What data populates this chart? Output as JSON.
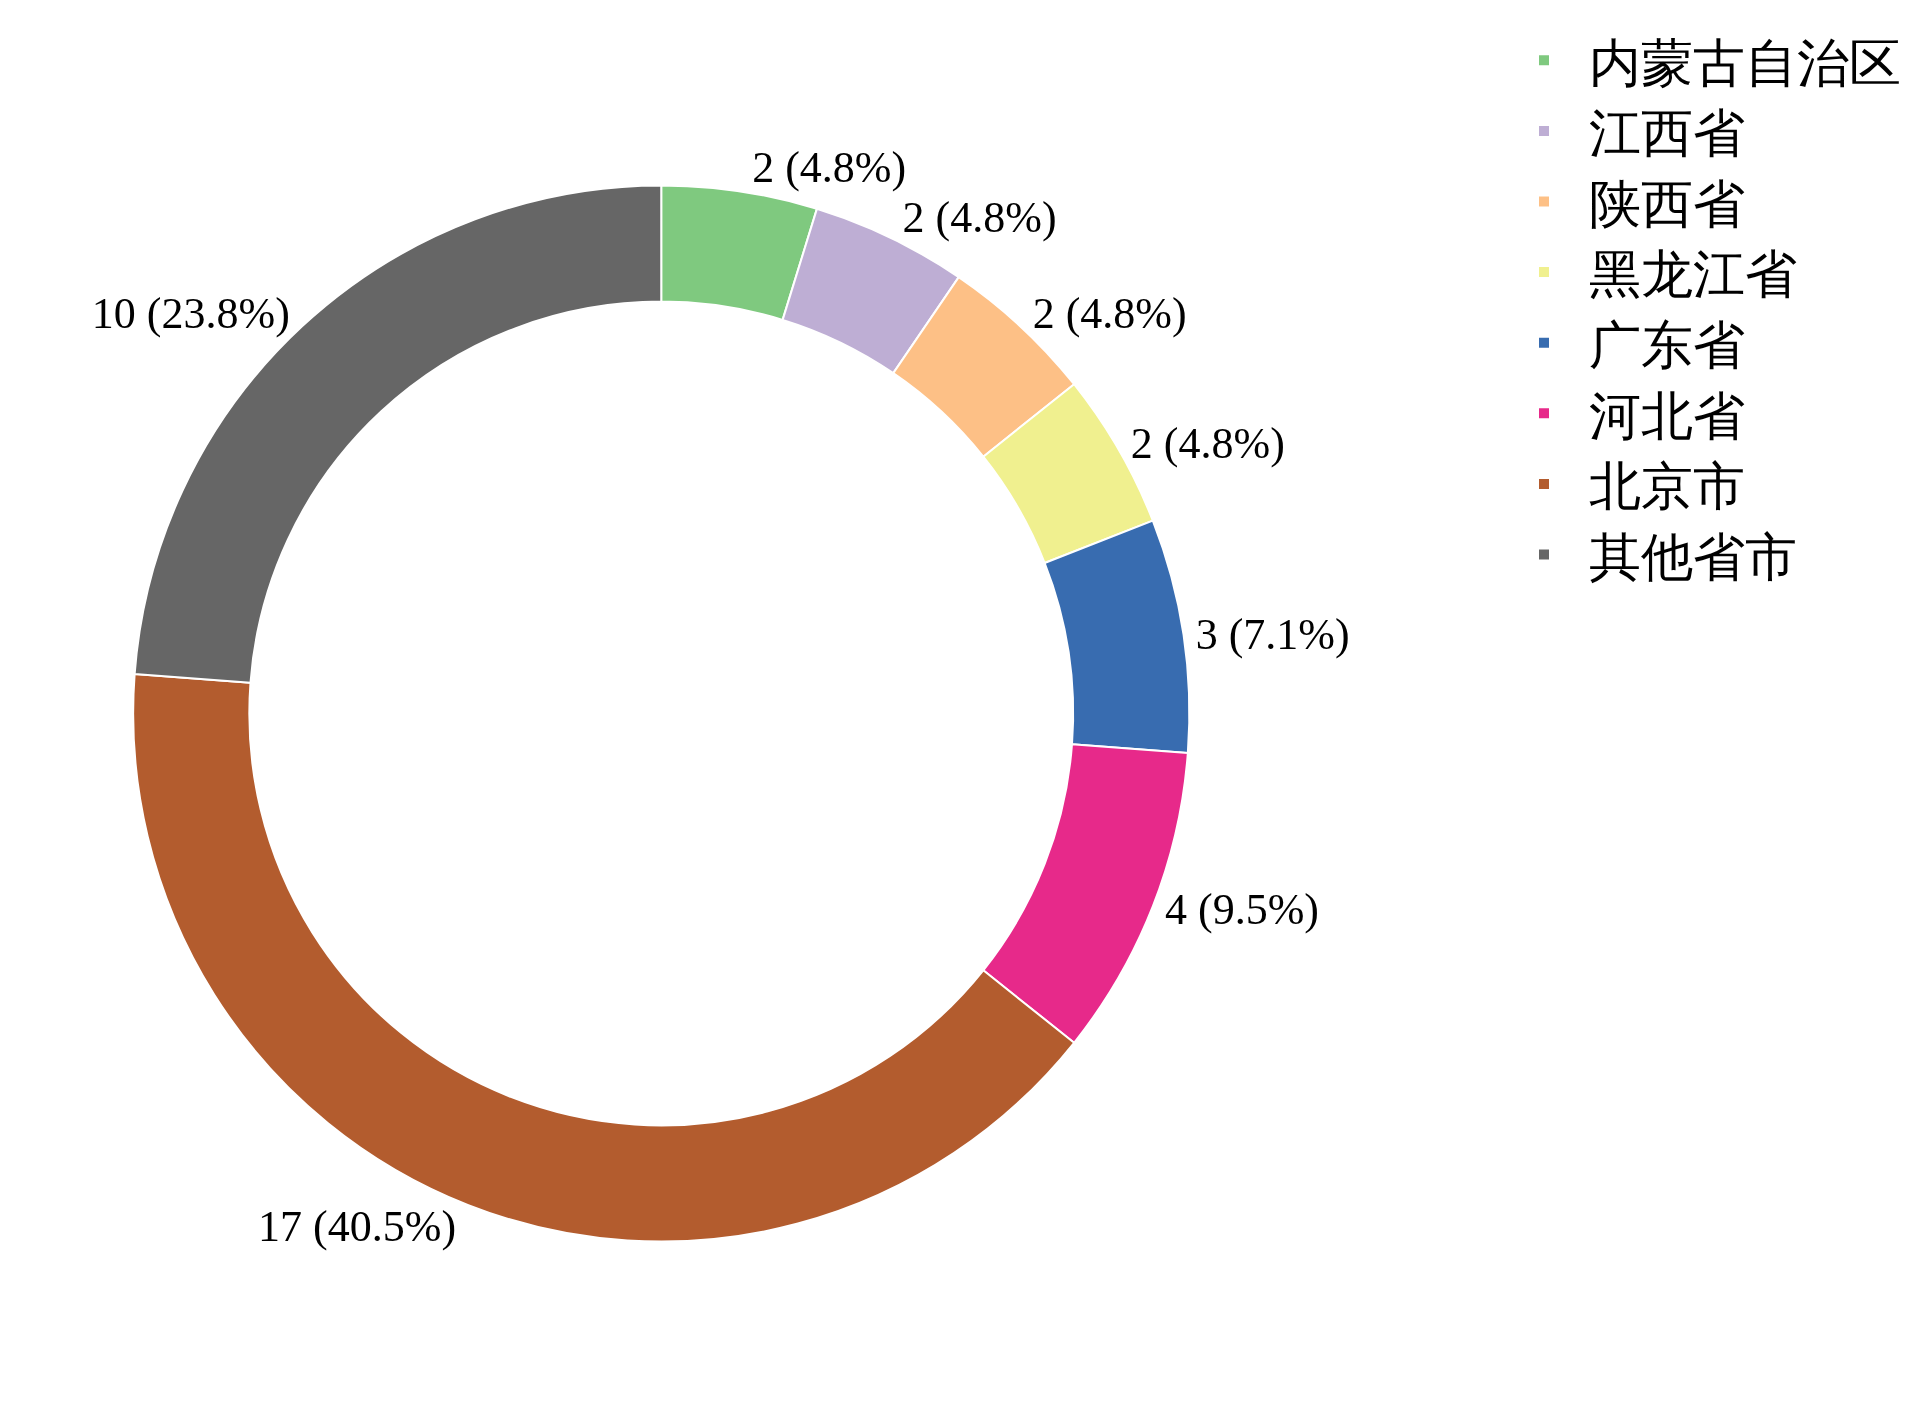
{
  "chart_data": {
    "type": "donut",
    "categories": [
      "内蒙古自治区",
      "江西省",
      "陕西省",
      "黑龙江省",
      "广东省",
      "河北省",
      "北京市",
      "其他省市"
    ],
    "values": [
      2,
      2,
      2,
      2,
      3,
      4,
      17,
      10
    ],
    "colors": [
      "#7fc97f",
      "#beaed4",
      "#fdc086",
      "#f0f08f",
      "#386cb0",
      "#e7298a",
      "#b35c2e",
      "#666666"
    ],
    "value_labels": [
      "2 (4.8%)",
      "2 (4.8%)",
      "2 (4.8%)",
      "2 (4.8%)",
      "3 (7.1%)",
      "4 (9.5%)",
      "17 (40.5%)",
      "10 (23.8%)"
    ],
    "legend": "top right"
  }
}
